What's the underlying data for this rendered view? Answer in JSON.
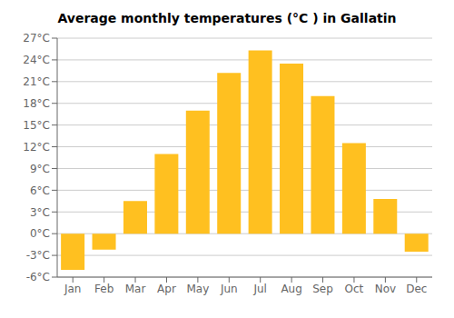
{
  "chart_data": {
    "type": "bar",
    "title": "Average monthly temperatures (°C ) in Gallatin",
    "categories": [
      "Jan",
      "Feb",
      "Mar",
      "Apr",
      "May",
      "Jun",
      "Jul",
      "Aug",
      "Sep",
      "Oct",
      "Nov",
      "Dec"
    ],
    "values": [
      -5.0,
      -2.2,
      4.5,
      11.0,
      17.0,
      22.2,
      25.3,
      23.5,
      19.0,
      12.5,
      4.8,
      -2.5
    ],
    "color": "#FFC020",
    "ylim": [
      -6,
      27
    ],
    "yticks": [
      {
        "value": -6,
        "label": "-6°C"
      },
      {
        "value": -3,
        "label": "-3°C"
      },
      {
        "value": 0,
        "label": "0°C"
      },
      {
        "value": 3,
        "label": "3°C"
      },
      {
        "value": 6,
        "label": "6°C"
      },
      {
        "value": 9,
        "label": "9°C"
      },
      {
        "value": 12,
        "label": "12°C"
      },
      {
        "value": 15,
        "label": "15°C"
      },
      {
        "value": 18,
        "label": "18°C"
      },
      {
        "value": 21,
        "label": "21°C"
      },
      {
        "value": 24,
        "label": "24°C"
      },
      {
        "value": 27,
        "label": "27°C"
      }
    ],
    "grid": true
  }
}
